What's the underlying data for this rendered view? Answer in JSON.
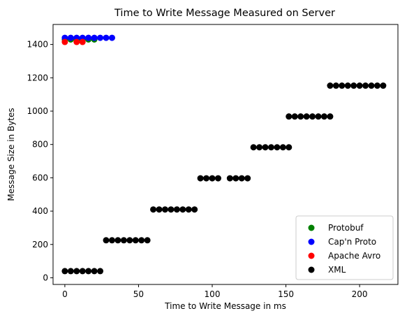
{
  "chart_data": {
    "type": "scatter",
    "title": "Time to Write Message Measured on Server",
    "xlabel": "Time to Write Message in ms",
    "ylabel": "Message Size in Bytes",
    "xlim": [
      -8,
      226
    ],
    "ylim": [
      -40,
      1520
    ],
    "xticks": [
      0,
      50,
      100,
      150,
      200
    ],
    "yticks": [
      0,
      200,
      400,
      600,
      800,
      1000,
      1200,
      1400
    ],
    "grid": false,
    "legend_position": "lower-right",
    "series": [
      {
        "name": "Protobuf",
        "color": "#008000",
        "points": [
          [
            0,
            1430
          ],
          [
            4,
            1430
          ],
          [
            8,
            1430
          ],
          [
            12,
            1430
          ],
          [
            16,
            1430
          ],
          [
            20,
            1430
          ]
        ]
      },
      {
        "name": "Cap'n Proto",
        "color": "#0000ff",
        "points": [
          [
            0,
            1440
          ],
          [
            4,
            1440
          ],
          [
            8,
            1440
          ],
          [
            12,
            1440
          ],
          [
            16,
            1440
          ],
          [
            20,
            1440
          ],
          [
            24,
            1440
          ],
          [
            28,
            1440
          ],
          [
            32,
            1440
          ]
        ]
      },
      {
        "name": "Apache Avro",
        "color": "#ff0000",
        "points": [
          [
            0,
            1415
          ],
          [
            8,
            1415
          ],
          [
            12,
            1415
          ]
        ]
      },
      {
        "name": "XML",
        "color": "#000000",
        "points": [
          [
            0,
            40
          ],
          [
            4,
            40
          ],
          [
            8,
            40
          ],
          [
            12,
            40
          ],
          [
            16,
            40
          ],
          [
            20,
            40
          ],
          [
            24,
            40
          ],
          [
            28,
            225
          ],
          [
            32,
            225
          ],
          [
            36,
            225
          ],
          [
            40,
            225
          ],
          [
            44,
            225
          ],
          [
            48,
            225
          ],
          [
            52,
            225
          ],
          [
            56,
            225
          ],
          [
            60,
            410
          ],
          [
            64,
            410
          ],
          [
            68,
            410
          ],
          [
            72,
            410
          ],
          [
            76,
            410
          ],
          [
            80,
            410
          ],
          [
            84,
            410
          ],
          [
            88,
            410
          ],
          [
            92,
            597
          ],
          [
            96,
            597
          ],
          [
            100,
            597
          ],
          [
            104,
            597
          ],
          [
            112,
            597
          ],
          [
            116,
            597
          ],
          [
            120,
            597
          ],
          [
            124,
            597
          ],
          [
            128,
            783
          ],
          [
            132,
            783
          ],
          [
            136,
            783
          ],
          [
            140,
            783
          ],
          [
            144,
            783
          ],
          [
            148,
            783
          ],
          [
            152,
            783
          ],
          [
            152,
            968
          ],
          [
            156,
            968
          ],
          [
            160,
            968
          ],
          [
            164,
            968
          ],
          [
            168,
            968
          ],
          [
            172,
            968
          ],
          [
            176,
            968
          ],
          [
            180,
            968
          ],
          [
            180,
            1153
          ],
          [
            184,
            1153
          ],
          [
            188,
            1153
          ],
          [
            192,
            1153
          ],
          [
            196,
            1153
          ],
          [
            200,
            1153
          ],
          [
            204,
            1153
          ],
          [
            208,
            1153
          ],
          [
            212,
            1153
          ],
          [
            216,
            1153
          ]
        ]
      }
    ]
  }
}
